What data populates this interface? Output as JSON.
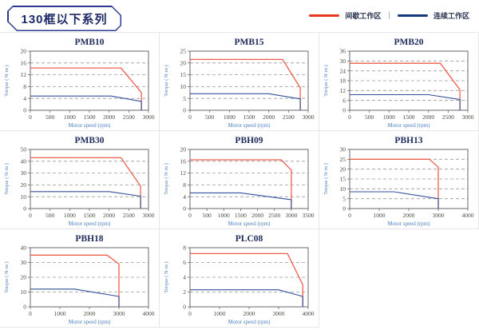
{
  "header": {
    "title": "130框以下系列"
  },
  "legend": {
    "separator": "|",
    "items": [
      {
        "label": "间歇工作区",
        "color": "#e8391d"
      },
      {
        "label": "连续工作区",
        "color": "#16387c"
      }
    ]
  },
  "colors": {
    "series_red": "#ee5f4d",
    "series_blue": "#33509a",
    "grid_line": "#9a9a9a",
    "plot_border": "#6a6a6a",
    "tick_text": "#4a4a42",
    "axis_label_text": "#4a7fc1",
    "chart_title_text": "#1e2a5a"
  },
  "chart_data": [
    {
      "type": "line",
      "title": "PMB10",
      "xlabel": "Motor speed (rpm)",
      "ylabel": "Torque ( N·m )",
      "xlim": [
        0,
        3000
      ],
      "xticks": [
        0,
        500,
        1000,
        1500,
        2000,
        2500,
        3000
      ],
      "ylim": [
        0,
        20
      ],
      "yticks": [
        0,
        4,
        8,
        12,
        16,
        20
      ],
      "series": [
        {
          "name": "间歇工作区",
          "color_key": "series_red",
          "points": [
            [
              0,
              14.3
            ],
            [
              2300,
              14.3
            ],
            [
              2820,
              6
            ],
            [
              2820,
              0
            ]
          ]
        },
        {
          "name": "连续工作区",
          "color_key": "series_blue",
          "points": [
            [
              0,
              4.8
            ],
            [
              2050,
              4.8
            ],
            [
              2820,
              3
            ],
            [
              2820,
              0
            ]
          ]
        }
      ]
    },
    {
      "type": "line",
      "title": "PMB15",
      "xlabel": "Motor speed (rpm)",
      "ylabel": "Torque ( N·m )",
      "xlim": [
        0,
        3000
      ],
      "xticks": [
        0,
        500,
        1000,
        1500,
        2000,
        2500,
        3000
      ],
      "ylim": [
        0,
        25
      ],
      "yticks": [
        0,
        5,
        10,
        15,
        20,
        25
      ],
      "series": [
        {
          "name": "间歇工作区",
          "color_key": "series_red",
          "points": [
            [
              0,
              21.5
            ],
            [
              2350,
              21.5
            ],
            [
              2800,
              9.5
            ],
            [
              2800,
              0
            ]
          ]
        },
        {
          "name": "连续工作区",
          "color_key": "series_blue",
          "points": [
            [
              0,
              7
            ],
            [
              2000,
              7
            ],
            [
              2800,
              4.8
            ],
            [
              2800,
              0
            ]
          ]
        }
      ]
    },
    {
      "type": "line",
      "title": "PMB20",
      "xlabel": "Motor speed (rpm)",
      "ylabel": "Torque ( N·m )",
      "xlim": [
        0,
        3000
      ],
      "xticks": [
        0,
        500,
        1000,
        1500,
        2000,
        2500,
        3000
      ],
      "ylim": [
        0,
        36
      ],
      "yticks": [
        0,
        6,
        12,
        18,
        24,
        30,
        36
      ],
      "series": [
        {
          "name": "间歇工作区",
          "color_key": "series_red",
          "points": [
            [
              0,
              28.6
            ],
            [
              2300,
              28.6
            ],
            [
              2800,
              12.5
            ],
            [
              2800,
              0
            ]
          ]
        },
        {
          "name": "连续工作区",
          "color_key": "series_blue",
          "points": [
            [
              0,
              9.5
            ],
            [
              2000,
              9.5
            ],
            [
              2800,
              6.5
            ],
            [
              2800,
              0
            ]
          ]
        }
      ]
    },
    {
      "type": "line",
      "title": "PMB30",
      "xlabel": "Motor speed (rpm)",
      "ylabel": "Torque ( N·m )",
      "xlim": [
        0,
        3000
      ],
      "xticks": [
        0,
        500,
        1000,
        1500,
        2000,
        2500,
        3000
      ],
      "ylim": [
        0,
        50
      ],
      "yticks": [
        0,
        10,
        20,
        30,
        40,
        50
      ],
      "series": [
        {
          "name": "间歇工作区",
          "color_key": "series_red",
          "points": [
            [
              0,
              43
            ],
            [
              2300,
              43
            ],
            [
              2800,
              19
            ],
            [
              2800,
              0
            ]
          ]
        },
        {
          "name": "连续工作区",
          "color_key": "series_blue",
          "points": [
            [
              0,
              14.3
            ],
            [
              2000,
              14.3
            ],
            [
              2800,
              10.5
            ],
            [
              2800,
              0
            ]
          ]
        }
      ]
    },
    {
      "type": "line",
      "title": "PBH09",
      "xlabel": "Motor speed (rpm)",
      "ylabel": "Torque ( N·m )",
      "xlim": [
        0,
        3500
      ],
      "xticks": [
        0,
        500,
        1000,
        1500,
        2000,
        2500,
        3000,
        3500
      ],
      "ylim": [
        0,
        20
      ],
      "yticks": [
        0,
        4,
        8,
        12,
        16,
        20
      ],
      "series": [
        {
          "name": "间歇工作区",
          "color_key": "series_red",
          "points": [
            [
              0,
              16.5
            ],
            [
              2700,
              16.5
            ],
            [
              3000,
              13
            ],
            [
              3000,
              0
            ]
          ]
        },
        {
          "name": "连续工作区",
          "color_key": "series_blue",
          "points": [
            [
              0,
              5.3
            ],
            [
              1500,
              5.3
            ],
            [
              3000,
              3
            ],
            [
              3000,
              0
            ]
          ]
        }
      ]
    },
    {
      "type": "line",
      "title": "PBH13",
      "xlabel": "Motor speed (rpm)",
      "ylabel": "Torque ( N·m )",
      "xlim": [
        0,
        4000
      ],
      "xticks": [
        0,
        1000,
        2000,
        3000,
        4000
      ],
      "ylim": [
        0,
        30
      ],
      "yticks": [
        0,
        5,
        10,
        15,
        20,
        25,
        30
      ],
      "series": [
        {
          "name": "间歇工作区",
          "color_key": "series_red",
          "points": [
            [
              0,
              25
            ],
            [
              2700,
              25
            ],
            [
              3000,
              21
            ],
            [
              3000,
              0
            ]
          ]
        },
        {
          "name": "连续工作区",
          "color_key": "series_blue",
          "points": [
            [
              0,
              8.5
            ],
            [
              1500,
              8.5
            ],
            [
              3000,
              5
            ],
            [
              3000,
              0
            ]
          ]
        }
      ]
    },
    {
      "type": "line",
      "title": "PBH18",
      "xlabel": "Motor speed (rpm)",
      "ylabel": "Torque ( N·m )",
      "xlim": [
        0,
        4000
      ],
      "xticks": [
        0,
        1000,
        2000,
        3000,
        4000
      ],
      "ylim": [
        0,
        40
      ],
      "yticks": [
        0,
        10,
        20,
        30,
        40
      ],
      "series": [
        {
          "name": "间歇工作区",
          "color_key": "series_red",
          "points": [
            [
              0,
              35
            ],
            [
              2600,
              35
            ],
            [
              3000,
              29
            ],
            [
              3000,
              0
            ]
          ]
        },
        {
          "name": "连续工作区",
          "color_key": "series_blue",
          "points": [
            [
              0,
              12
            ],
            [
              1500,
              12
            ],
            [
              3000,
              7
            ],
            [
              3000,
              0
            ]
          ]
        }
      ]
    },
    {
      "type": "line",
      "title": "PLC08",
      "xlabel": "Motor speed (rpm)",
      "ylabel": "Torque ( N·m )",
      "xlim": [
        0,
        4000
      ],
      "xticks": [
        0,
        1000,
        2000,
        3000,
        4000
      ],
      "ylim": [
        0,
        8
      ],
      "yticks": [
        0,
        2,
        4,
        6,
        8
      ],
      "series": [
        {
          "name": "间歇工作区",
          "color_key": "series_red",
          "points": [
            [
              0,
              7.2
            ],
            [
              3300,
              7.2
            ],
            [
              3820,
              3
            ],
            [
              3820,
              0
            ]
          ]
        },
        {
          "name": "连续工作区",
          "color_key": "series_blue",
          "points": [
            [
              0,
              2.3
            ],
            [
              3000,
              2.3
            ],
            [
              3820,
              1.4
            ],
            [
              3820,
              0
            ]
          ]
        }
      ]
    }
  ]
}
